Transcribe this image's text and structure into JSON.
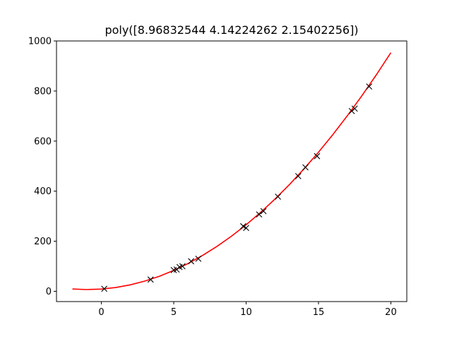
{
  "chart_data": {
    "type": "scatter",
    "title": "poly([8.96832544 4.14224262 2.15402256])",
    "xlabel": "",
    "ylabel": "",
    "xlim": [
      -3.1,
      21.1
    ],
    "ylim": [
      -41,
      1000
    ],
    "x_ticks": [
      0,
      5,
      10,
      15,
      20
    ],
    "y_ticks": [
      0,
      200,
      400,
      600,
      800,
      1000
    ],
    "x_tick_labels": [
      "0",
      "5",
      "10",
      "15",
      "20"
    ],
    "y_tick_labels": [
      "0",
      "200",
      "400",
      "600",
      "800",
      "1000"
    ],
    "grid": false,
    "series": [
      {
        "kind": "scatter",
        "marker": "x",
        "color": "#000000",
        "points": [
          [
            0.2,
            10
          ],
          [
            3.4,
            47
          ],
          [
            5.0,
            85
          ],
          [
            5.2,
            87
          ],
          [
            5.4,
            97
          ],
          [
            5.6,
            100
          ],
          [
            6.2,
            120
          ],
          [
            6.7,
            130
          ],
          [
            9.8,
            260
          ],
          [
            10.0,
            253
          ],
          [
            10.9,
            307
          ],
          [
            11.2,
            320
          ],
          [
            12.2,
            378
          ],
          [
            13.6,
            460
          ],
          [
            14.1,
            495
          ],
          [
            14.9,
            540
          ],
          [
            17.3,
            720
          ],
          [
            17.5,
            730
          ],
          [
            18.5,
            818
          ]
        ]
      },
      {
        "kind": "line",
        "color": "#ff0000",
        "coefficients": [
          8.96832544,
          4.14224262,
          2.15402256
        ],
        "x_start": -2,
        "x_end": 20
      }
    ]
  }
}
